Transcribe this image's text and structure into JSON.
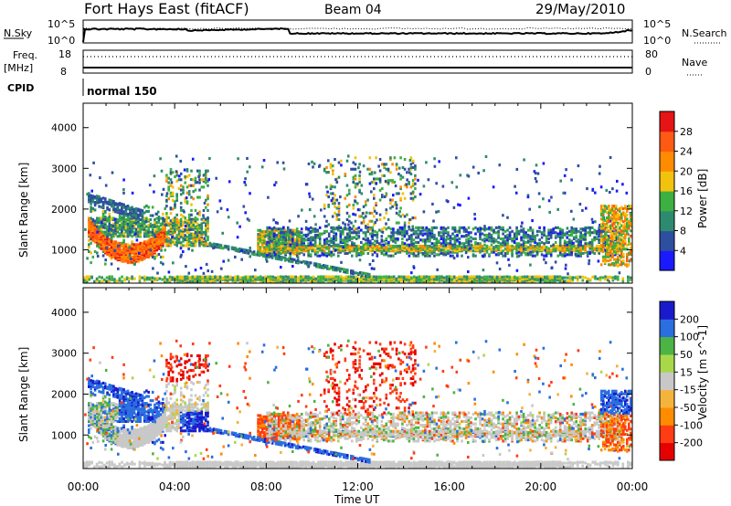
{
  "header": {
    "station": "Fort Hays East (fitACF)",
    "beam": "Beam 04",
    "date": "29/May/2010"
  },
  "param_panels": {
    "nsky_label": "N.Sky",
    "nsky_ticks": [
      "10^5",
      "10^0"
    ],
    "nsearch_label": "N.Search",
    "nsearch_ticks": [
      "10^5",
      "10^0"
    ],
    "freq_label": "Freq.",
    "freq_unit": "[MHz]",
    "freq_ticks": [
      "18",
      "8"
    ],
    "nave_label": "Nave",
    "nave_ticks": [
      "80",
      "0"
    ],
    "cpid_label": "CPID",
    "cpid_value": "normal 150"
  },
  "chart_data": [
    {
      "type": "heatmap",
      "name": "power",
      "ylabel": "Slant Range [km]",
      "xlabel": "Time UT",
      "x_ticks": [
        "00:00",
        "04:00",
        "08:00",
        "12:00",
        "16:00",
        "20:00",
        "00:00"
      ],
      "xlim_hours": [
        0,
        24
      ],
      "y_ticks": [
        1000,
        2000,
        3000,
        4000
      ],
      "ylim": [
        180,
        4600
      ],
      "colorbar": {
        "label": "Power [dB]",
        "ticks": [
          "4",
          "8",
          "12",
          "16",
          "20",
          "24",
          "28"
        ],
        "colors": [
          "#1a1aff",
          "#2e4ea0",
          "#2e8a6e",
          "#3cb040",
          "#f2c20f",
          "#ff8c00",
          "#ff5a14",
          "#e61414"
        ]
      },
      "features": [
        {
          "desc": "ground scatter band",
          "t": [
            0,
            24
          ],
          "range": [
            240,
            320
          ],
          "power_db": 14
        },
        {
          "desc": "pre-dawn arc",
          "t": [
            0.2,
            3.6
          ],
          "range": [
            700,
            2000
          ],
          "power_db": 26
        },
        {
          "desc": "long band",
          "t": [
            8,
            23.5
          ],
          "range": [
            850,
            1500
          ],
          "power_db": 10
        }
      ]
    },
    {
      "type": "heatmap",
      "name": "velocity",
      "ylabel": "Slant Range [km]",
      "xlabel": "Time UT",
      "x_ticks": [
        "00:00",
        "04:00",
        "08:00",
        "12:00",
        "16:00",
        "20:00",
        "00:00"
      ],
      "xlim_hours": [
        0,
        24
      ],
      "y_ticks": [
        1000,
        2000,
        3000,
        4000
      ],
      "ylim": [
        180,
        4600
      ],
      "colorbar": {
        "label": "Velocity [m s^-1]",
        "ticks": [
          "200",
          "100",
          "50",
          "15",
          "-15",
          "-50",
          "-100",
          "-200"
        ],
        "colors": [
          "#1a1acc",
          "#2a6ee0",
          "#4cb444",
          "#a8d84a",
          "#c8c8c8",
          "#f4b43c",
          "#ff8c00",
          "#ff3c14",
          "#e60000"
        ]
      }
    }
  ],
  "axis_title": "Time UT"
}
